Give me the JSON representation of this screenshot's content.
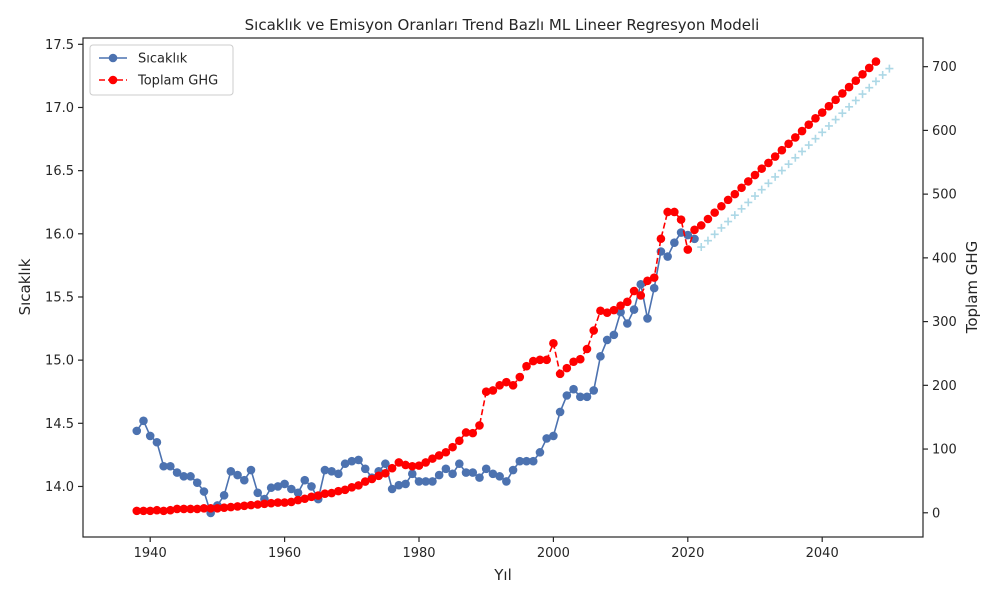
{
  "chart_data": {
    "type": "line",
    "title": "Sıcaklık ve Emisyon Oranları Trend Bazlı ML Lineer Regresyon Modeli",
    "xlabel": "Yıl",
    "ylabel": "Sıcaklık",
    "ylabel_right": "Toplam GHG",
    "xlim": [
      1930,
      2055
    ],
    "ylim_left": [
      13.6,
      17.55
    ],
    "ylim_right": [
      -38,
      745
    ],
    "x_ticks": [
      1940,
      1960,
      1980,
      2000,
      2020,
      2040
    ],
    "y_left_ticks": [
      "14.0",
      "14.5",
      "15.0",
      "15.5",
      "16.0",
      "16.5",
      "17.0",
      "17.5"
    ],
    "y_right_ticks": [
      "0",
      "100",
      "200",
      "300",
      "400",
      "500",
      "600",
      "700"
    ],
    "grid": false,
    "legend_position": "top-left",
    "legend": [
      "Sıcaklık",
      "Toplam GHG"
    ],
    "series": [
      {
        "name": "Sıcaklık",
        "axis": "left",
        "color": "#4c72b0",
        "style": "solid-line-circle-markers",
        "x_start": 1938,
        "values": [
          14.44,
          14.52,
          14.4,
          14.35,
          14.16,
          14.16,
          14.11,
          14.08,
          14.08,
          14.03,
          13.96,
          13.79,
          13.85,
          13.93,
          14.12,
          14.09,
          14.05,
          14.13,
          13.95,
          13.9,
          13.99,
          14.0,
          14.02,
          13.98,
          13.95,
          14.05,
          14.0,
          13.9,
          14.13,
          14.12,
          14.1,
          14.18,
          14.2,
          14.21,
          14.14,
          14.07,
          14.12,
          14.18,
          13.98,
          14.01,
          14.02,
          14.1,
          14.04,
          14.04,
          14.04,
          14.09,
          14.14,
          14.1,
          14.18,
          14.11,
          14.11,
          14.07,
          14.14,
          14.1,
          14.08,
          14.04,
          14.13,
          14.2,
          14.2,
          14.2,
          14.27,
          14.38,
          14.4,
          14.59,
          14.72,
          14.77,
          14.71,
          14.71,
          14.76,
          15.03,
          15.16,
          15.2,
          15.38,
          15.29,
          15.4,
          15.6,
          15.33,
          15.57,
          15.86,
          15.82,
          15.93,
          16.01,
          15.99,
          15.96
        ]
      },
      {
        "name": "Toplam GHG",
        "axis": "right",
        "color": "#ff0000",
        "style": "dashed-line-circle-markers",
        "x_start": 1938,
        "values": [
          3,
          3,
          3,
          4,
          3,
          4,
          6,
          6,
          6,
          6,
          7,
          7,
          7,
          8,
          9,
          10,
          11,
          12,
          13,
          14,
          15,
          16,
          16,
          17,
          20,
          22,
          25,
          27,
          30,
          31,
          34,
          36,
          40,
          43,
          49,
          53,
          58,
          62,
          70,
          79,
          75,
          73,
          74,
          79,
          85,
          90,
          95,
          103,
          113,
          126,
          125,
          137,
          190,
          192,
          200,
          205,
          200,
          213,
          230,
          238,
          240,
          240,
          266,
          218,
          227,
          237,
          241,
          257,
          286,
          317,
          314,
          318,
          325,
          331,
          348,
          341,
          364,
          369,
          430,
          472,
          472,
          460,
          413,
          444,
          451,
          461,
          471,
          481,
          491,
          500,
          510,
          520,
          530,
          540,
          549,
          559,
          569,
          579,
          589,
          599,
          609,
          619,
          628,
          638,
          648,
          658,
          668,
          678,
          688,
          698,
          708
        ]
      },
      {
        "name": "",
        "axis": "right",
        "color": "#add8e6",
        "style": "plus-markers",
        "x_start": 2022,
        "values": [
          417,
          427,
          437,
          447,
          457,
          467,
          477,
          487,
          497,
          507,
          517,
          527,
          537,
          547,
          557,
          567,
          577,
          587,
          597,
          607,
          617,
          627,
          637,
          647,
          657,
          667,
          677,
          687,
          697
        ]
      }
    ]
  }
}
